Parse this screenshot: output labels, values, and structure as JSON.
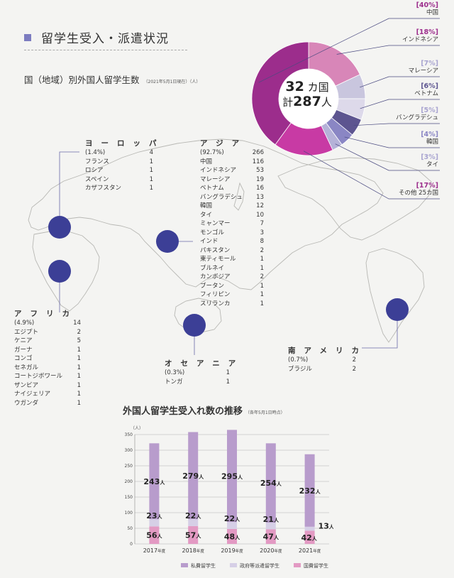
{
  "header": {
    "title": "留学生受入・派遣状況",
    "subtitle": "国（地域）別外国人留学生数",
    "subtitle_note": "（2021年5月1日現在）（人）"
  },
  "pie": {
    "center_line1": "32",
    "center_unit1": "カ国",
    "center_line2_prefix": "計",
    "center_total": "287",
    "center_unit2": "人",
    "slices": [
      {
        "pct_label": "[40%]",
        "name": "中国",
        "value": 40,
        "color": "#9c2d8c"
      },
      {
        "pct_label": "[18%]",
        "name": "インドネシア",
        "value": 18,
        "color": "#d886b8"
      },
      {
        "pct_label": "[7%]",
        "name": "マレーシア",
        "value": 7,
        "color": "#c9c6de"
      },
      {
        "pct_label": "[6%]",
        "name": "ベトナム",
        "value": 6,
        "color": "#ddd9ea"
      },
      {
        "pct_label": "[5%]",
        "name": "バングラデシュ",
        "value": 5,
        "color": "#5d5590"
      },
      {
        "pct_label": "[4%]",
        "name": "韓国",
        "value": 4,
        "color": "#8a86c4"
      },
      {
        "pct_label": "[3%]",
        "name": "タイ",
        "value": 3,
        "color": "#b5b2d8"
      },
      {
        "pct_label": "[17%]",
        "name": "その他 25カ国",
        "value": 17,
        "color": "#c83aa4"
      }
    ]
  },
  "regions": {
    "europe": {
      "name": "ヨーロッパ",
      "share": "(1.4%)",
      "total": "4",
      "rows": [
        [
          "フランス",
          "1"
        ],
        [
          "ロシア",
          "1"
        ],
        [
          "スペイン",
          "1"
        ],
        [
          "カザフスタン",
          "1"
        ]
      ]
    },
    "asia": {
      "name": "アジア",
      "share": "(92.7%)",
      "total": "266",
      "rows": [
        [
          "中国",
          "116"
        ],
        [
          "インドネシア",
          "53"
        ],
        [
          "マレーシア",
          "19"
        ],
        [
          "ベトナム",
          "16"
        ],
        [
          "バングラデシュ",
          "13"
        ],
        [
          "韓国",
          "12"
        ],
        [
          "タイ",
          "10"
        ],
        [
          "ミャンマー",
          "7"
        ],
        [
          "モンゴル",
          "3"
        ],
        [
          "インド",
          "8"
        ],
        [
          "パキスタン",
          "2"
        ],
        [
          "東ティモール",
          "1"
        ],
        [
          "ブルネイ",
          "1"
        ],
        [
          "カンボジア",
          "2"
        ],
        [
          "ブータン",
          "1"
        ],
        [
          "フィリピン",
          "1"
        ],
        [
          "スリランカ",
          "1"
        ]
      ]
    },
    "africa": {
      "name": "アフリカ",
      "share": "(4.9%)",
      "total": "14",
      "rows": [
        [
          "エジプト",
          "2"
        ],
        [
          "ケニア",
          "5"
        ],
        [
          "ガーナ",
          "1"
        ],
        [
          "コンゴ",
          "1"
        ],
        [
          "セネガル",
          "1"
        ],
        [
          "コートジボワール",
          "1"
        ],
        [
          "ザンビア",
          "1"
        ],
        [
          "ナイジェリア",
          "1"
        ],
        [
          "ウガンダ",
          "1"
        ]
      ]
    },
    "oceania": {
      "name": "オセアニア",
      "share": "(0.3%)",
      "total": "1",
      "rows": [
        [
          "トンガ",
          "1"
        ]
      ]
    },
    "south_america": {
      "name": "南アメリカ",
      "share": "(0.7%)",
      "total": "2",
      "rows": [
        [
          "ブラジル",
          "2"
        ]
      ]
    }
  },
  "chart_title": "外国人留学生受入れ数の推移",
  "chart_title_note": "（各年5月1日時点）",
  "chart_data": {
    "type": "bar",
    "stacked": true,
    "ylabel": "（人）",
    "ylim": [
      0,
      350
    ],
    "yticks": [
      0,
      50,
      100,
      150,
      200,
      250,
      300,
      350
    ],
    "grid": true,
    "legend_position": "bottom",
    "categories": [
      "2017",
      "2018",
      "2019",
      "2020",
      "2021"
    ],
    "category_suffix": "年度",
    "unit": "人",
    "series": [
      {
        "name": "私費留学生",
        "color": "#b89ccc",
        "label_color": "#222",
        "values": [
          243,
          279,
          295,
          254,
          232
        ]
      },
      {
        "name": "政府等派遣留学生",
        "color": "#d6cfe6",
        "label_color": "#222",
        "values": [
          23,
          22,
          22,
          21,
          13
        ]
      },
      {
        "name": "国費留学生",
        "color": "#e39ac3",
        "label_color": "#222",
        "values": [
          56,
          57,
          48,
          47,
          42
        ]
      }
    ]
  }
}
